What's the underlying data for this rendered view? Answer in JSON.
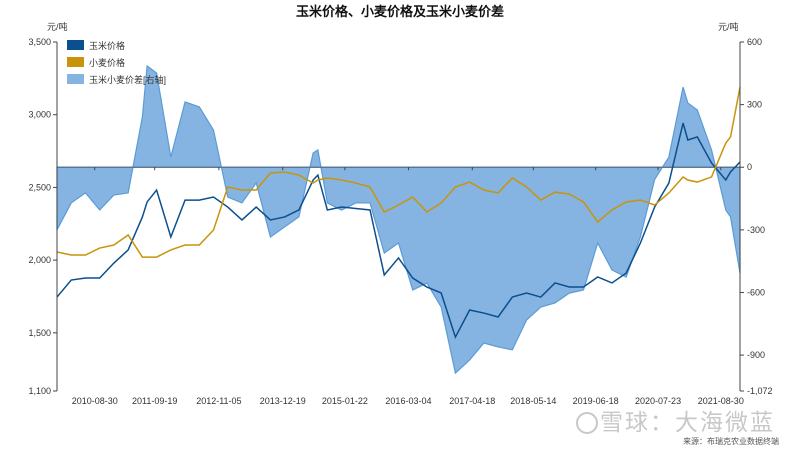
{
  "chart_data": {
    "type": "line",
    "title": "玉米价格、小麦价格及玉米小麦价差",
    "left_unit": "元/吨",
    "right_unit": "元/吨",
    "ylim_left": [
      1100,
      3500
    ],
    "ylim_right": [
      -1072,
      600
    ],
    "left_ticks": [
      1100,
      1500,
      2000,
      2500,
      3000,
      3500
    ],
    "left_tick_labels": [
      "1,100",
      "1,500",
      "2,000",
      "2,500",
      "3,000",
      "3,500"
    ],
    "right_ticks": [
      -1072,
      -900,
      -600,
      -300,
      0,
      300,
      600
    ],
    "right_tick_labels": [
      "-1,072",
      "-900",
      "-600",
      "-300",
      "0",
      "300",
      "600"
    ],
    "x_ticks": [
      "2010-08-30",
      "2011-09-19",
      "2012-11-05",
      "2013-12-19",
      "2015-01-22",
      "2016-03-04",
      "2017-04-18",
      "2018-05-14",
      "2019-06-18",
      "2020-07-23",
      "2021-08-30"
    ],
    "xlim": [
      "2010-01",
      "2022-01"
    ],
    "legend_position": "top-left",
    "grid": false,
    "x": [
      "2010-01",
      "2010-04",
      "2010-07",
      "2010-10",
      "2011-01",
      "2011-04",
      "2011-07",
      "2011-08",
      "2011-10",
      "2012-01",
      "2012-04",
      "2012-07",
      "2012-10",
      "2013-01",
      "2013-04",
      "2013-07",
      "2013-10",
      "2014-01",
      "2014-04",
      "2014-07",
      "2014-08",
      "2014-10",
      "2015-01",
      "2015-04",
      "2015-07",
      "2015-10",
      "2016-01",
      "2016-04",
      "2016-07",
      "2016-10",
      "2017-01",
      "2017-04",
      "2017-07",
      "2017-10",
      "2018-01",
      "2018-04",
      "2018-07",
      "2018-10",
      "2019-01",
      "2019-04",
      "2019-07",
      "2019-10",
      "2020-01",
      "2020-04",
      "2020-07",
      "2020-10",
      "2021-01",
      "2021-02",
      "2021-04",
      "2021-07",
      "2021-10",
      "2021-11",
      "2022-01"
    ],
    "series": [
      {
        "name": "玉米价格",
        "axis": "left",
        "color": "#0b4f8e",
        "values": [
          1746,
          1863,
          1877,
          1877,
          1980,
          2070,
          2297,
          2400,
          2482,
          2159,
          2413,
          2413,
          2434,
          2365,
          2276,
          2365,
          2276,
          2297,
          2345,
          2551,
          2585,
          2345,
          2365,
          2355,
          2345,
          1898,
          2015,
          1877,
          1815,
          1774,
          1471,
          1657,
          1636,
          1609,
          1746,
          1774,
          1746,
          1843,
          1815,
          1815,
          1884,
          1843,
          1911,
          2118,
          2365,
          2530,
          2943,
          2826,
          2847,
          2668,
          2551,
          2606,
          2675
        ]
      },
      {
        "name": "小麦价格",
        "axis": "left",
        "color": "#c8940a",
        "values": [
          2056,
          2035,
          2035,
          2083,
          2104,
          2173,
          2021,
          2021,
          2021,
          2070,
          2104,
          2104,
          2207,
          2503,
          2482,
          2482,
          2599,
          2606,
          2585,
          2530,
          2551,
          2565,
          2551,
          2530,
          2503,
          2331,
          2379,
          2434,
          2331,
          2393,
          2503,
          2537,
          2482,
          2462,
          2565,
          2503,
          2413,
          2468,
          2455,
          2400,
          2262,
          2345,
          2400,
          2413,
          2379,
          2462,
          2572,
          2551,
          2537,
          2572,
          2805,
          2847,
          3190
        ]
      },
      {
        "name": "玉米小麦价差[右轴]",
        "axis": "right",
        "color": "#5b9bd5",
        "fill": "#86b4e2",
        "values": [
          -300,
          -171,
          -123,
          -205,
          -133,
          -123,
          241,
          485,
          451,
          49,
          313,
          289,
          178,
          -143,
          -171,
          -75,
          -334,
          -286,
          -238,
          68,
          83,
          -171,
          -205,
          -171,
          -171,
          -411,
          -363,
          -588,
          -555,
          -670,
          -986,
          -923,
          -842,
          -861,
          -875,
          -732,
          -670,
          -650,
          -603,
          -588,
          -363,
          -492,
          -526,
          -334,
          -59,
          49,
          384,
          308,
          274,
          83,
          -205,
          -238,
          -507
        ]
      }
    ]
  },
  "watermark": "雪球：大海微蓝",
  "source": "来源：布瑞克农业数据终端"
}
